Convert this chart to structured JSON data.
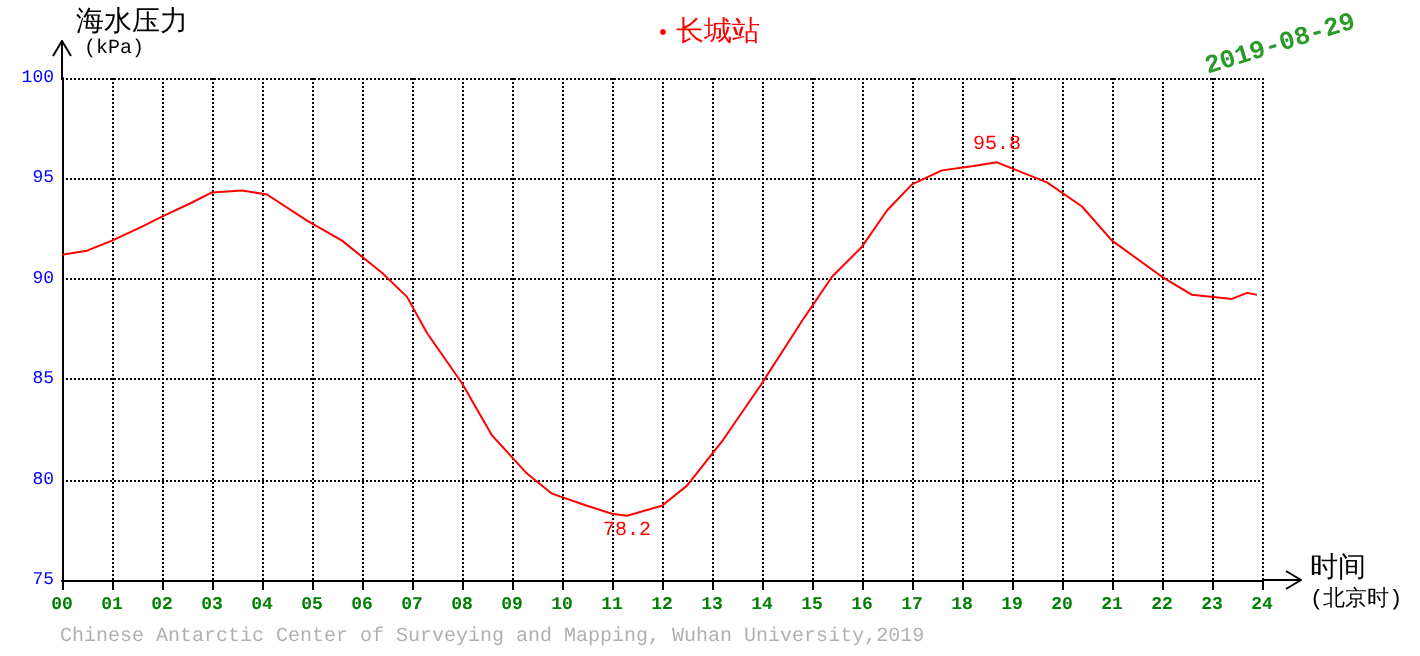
{
  "chart_data": {
    "type": "line",
    "xlabel": "时间\n(北京时)",
    "ylabel": "海水压力\n(kPa)",
    "annotations": [
      {
        "text": "95.8",
        "x": 18.7,
        "y": 95.8
      },
      {
        "text": "78.2",
        "x": 11.3,
        "y": 78.2
      },
      "2019-08-29",
      "Chinese Antarctic Center of Surveying and Mapping, Wuhan University,2019"
    ],
    "series": [
      {
        "name": "长城站",
        "color": "#ff0000",
        "x": [
          0,
          0.5,
          1,
          1.6,
          2,
          2.6,
          3,
          3.6,
          4.1,
          4.9,
          5.6,
          6.4,
          6.9,
          7.3,
          8,
          8.6,
          9.3,
          9.8,
          10.5,
          11,
          11.3,
          12,
          12.5,
          13.2,
          14,
          14.8,
          15.4,
          16,
          16.5,
          17,
          17.6,
          18.2,
          18.7,
          19,
          19.7,
          20.4,
          21,
          22,
          22.6,
          23.4,
          23.7,
          23.9
        ],
        "values": [
          91.2,
          91.4,
          91.9,
          92.6,
          93.1,
          93.8,
          94.3,
          94.4,
          94.2,
          92.9,
          91.9,
          90.3,
          89.1,
          87.3,
          84.8,
          82.2,
          80.3,
          79.3,
          78.7,
          78.3,
          78.2,
          78.7,
          79.7,
          81.9,
          84.8,
          87.9,
          90.1,
          91.6,
          93.4,
          94.7,
          95.4,
          95.6,
          95.8,
          95.5,
          94.8,
          93.6,
          91.9,
          90.1,
          89.2,
          89.0,
          89.3,
          89.2
        ]
      }
    ],
    "xlim": [
      0,
      24
    ],
    "xticks": [
      {
        "value": 0,
        "label": "00"
      },
      {
        "value": 1,
        "label": "01"
      },
      {
        "value": 2,
        "label": "02"
      },
      {
        "value": 3,
        "label": "03"
      },
      {
        "value": 4,
        "label": "04"
      },
      {
        "value": 5,
        "label": "05"
      },
      {
        "value": 6,
        "label": "06"
      },
      {
        "value": 7,
        "label": "07"
      },
      {
        "value": 8,
        "label": "08"
      },
      {
        "value": 9,
        "label": "09"
      },
      {
        "value": 10,
        "label": "10"
      },
      {
        "value": 11,
        "label": "11"
      },
      {
        "value": 12,
        "label": "12"
      },
      {
        "value": 13,
        "label": "13"
      },
      {
        "value": 14,
        "label": "14"
      },
      {
        "value": 15,
        "label": "15"
      },
      {
        "value": 16,
        "label": "16"
      },
      {
        "value": 17,
        "label": "17"
      },
      {
        "value": 18,
        "label": "18"
      },
      {
        "value": 19,
        "label": "19"
      },
      {
        "value": 20,
        "label": "20"
      },
      {
        "value": 21,
        "label": "21"
      },
      {
        "value": 22,
        "label": "22"
      },
      {
        "value": 23,
        "label": "23"
      },
      {
        "value": 24,
        "label": "24"
      }
    ],
    "ylim": [
      75,
      100
    ],
    "yticks": [
      75,
      80,
      85,
      90,
      95,
      100
    ],
    "grid": true,
    "legend": "top",
    "marker": "none",
    "line_style": "solid"
  }
}
